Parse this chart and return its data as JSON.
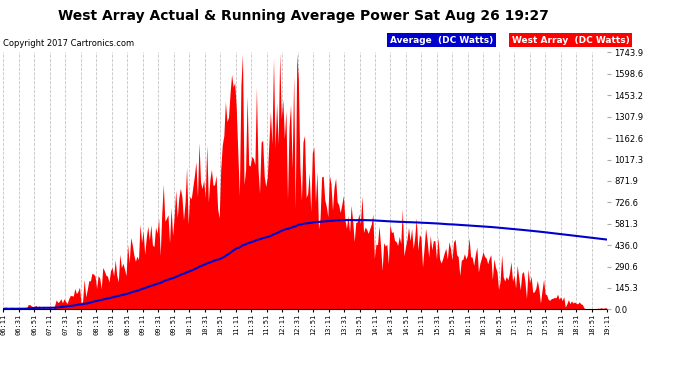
{
  "title": "West Array Actual & Running Average Power Sat Aug 26 19:27",
  "copyright": "Copyright 2017 Cartronics.com",
  "legend_avg": "Average  (DC Watts)",
  "legend_west": "West Array  (DC Watts)",
  "ylabel_right_ticks": [
    0.0,
    145.3,
    290.6,
    436.0,
    581.3,
    726.6,
    871.9,
    1017.3,
    1162.6,
    1307.9,
    1453.2,
    1598.6,
    1743.9
  ],
  "ymax": 1743.9,
  "ymin": 0.0,
  "background_color": "#ffffff",
  "plot_bg_color": "#ffffff",
  "grid_color": "#aaaaaa",
  "area_color": "#ff0000",
  "avg_line_color": "#0000cc",
  "title_color": "#000000",
  "copyright_color": "#000000",
  "x_tick_labels": [
    "06:11",
    "06:31",
    "06:51",
    "07:11",
    "07:31",
    "07:51",
    "08:11",
    "08:31",
    "08:51",
    "09:11",
    "09:31",
    "09:51",
    "10:11",
    "10:31",
    "10:51",
    "11:11",
    "11:31",
    "11:51",
    "12:11",
    "12:31",
    "12:51",
    "13:11",
    "13:31",
    "13:51",
    "14:11",
    "14:31",
    "14:51",
    "15:11",
    "15:31",
    "15:51",
    "16:11",
    "16:31",
    "16:51",
    "17:11",
    "17:31",
    "17:51",
    "18:11",
    "18:31",
    "18:51",
    "19:11"
  ]
}
